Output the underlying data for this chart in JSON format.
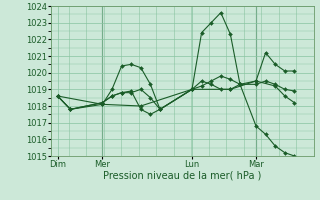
{
  "xlabel": "Pression niveau de la mer( hPa )",
  "ylim": [
    1015,
    1024
  ],
  "yticks": [
    1015,
    1016,
    1017,
    1018,
    1019,
    1020,
    1021,
    1022,
    1023,
    1024
  ],
  "bg_color": "#cce8d8",
  "grid_color": "#88c4a0",
  "line_color": "#1a5c28",
  "day_labels": [
    "Dim",
    "Mer",
    "Lun",
    "Mar"
  ],
  "day_positions": [
    0,
    14,
    42,
    62
  ],
  "vline_positions": [
    14,
    62
  ],
  "xlim": [
    -2,
    80
  ],
  "series": [
    {
      "x": [
        0,
        4,
        14,
        17,
        20,
        23,
        26,
        29,
        32,
        42,
        45,
        48,
        51,
        54,
        57,
        62,
        65,
        68,
        71,
        74
      ],
      "y": [
        1018.6,
        1017.8,
        1018.1,
        1019.0,
        1020.4,
        1020.5,
        1020.3,
        1019.3,
        1017.8,
        1019.0,
        1022.4,
        1023.0,
        1023.6,
        1022.3,
        1019.3,
        1019.5,
        1021.2,
        1020.5,
        1020.1,
        1020.1
      ]
    },
    {
      "x": [
        0,
        4,
        14,
        17,
        20,
        23,
        26,
        29,
        32,
        42,
        45,
        48,
        51,
        54,
        57,
        62,
        65,
        68,
        71,
        74
      ],
      "y": [
        1018.6,
        1017.8,
        1018.2,
        1018.6,
        1018.8,
        1018.8,
        1019.0,
        1018.5,
        1017.8,
        1019.0,
        1019.2,
        1019.5,
        1019.8,
        1019.6,
        1019.3,
        1019.3,
        1019.5,
        1019.3,
        1019.0,
        1018.9
      ]
    },
    {
      "x": [
        0,
        14,
        26,
        42,
        54,
        62,
        68,
        71,
        74
      ],
      "y": [
        1018.6,
        1018.1,
        1018.0,
        1019.0,
        1019.0,
        1019.5,
        1019.2,
        1018.6,
        1018.2
      ]
    },
    {
      "x": [
        0,
        4,
        14,
        17,
        20,
        23,
        26,
        29,
        32,
        42,
        45,
        48,
        51,
        54,
        57,
        62,
        65,
        68,
        71,
        74
      ],
      "y": [
        1018.6,
        1017.8,
        1018.2,
        1018.6,
        1018.8,
        1018.9,
        1017.8,
        1017.5,
        1017.8,
        1019.0,
        1019.5,
        1019.3,
        1019.0,
        1019.0,
        1019.3,
        1016.8,
        1016.3,
        1015.6,
        1015.2,
        1015.0
      ]
    }
  ]
}
